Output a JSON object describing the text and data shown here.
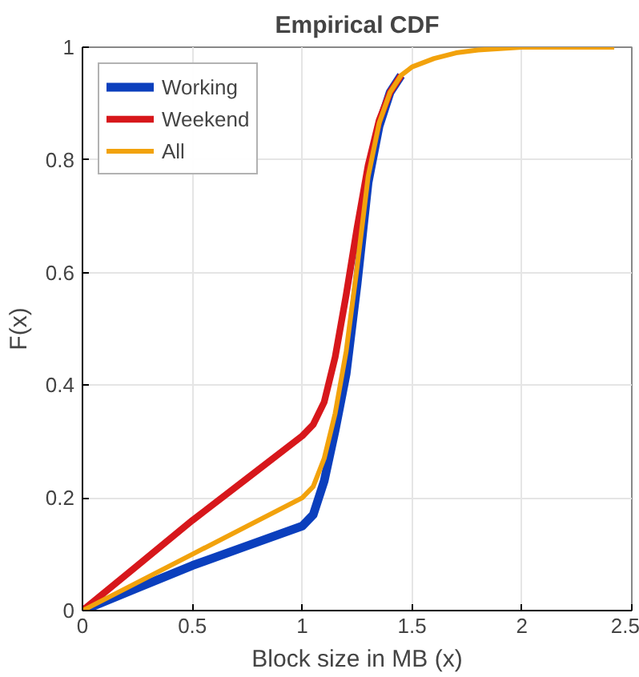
{
  "chart_data": {
    "type": "line",
    "title": "Empirical CDF",
    "xlabel": "Block size in MB (x)",
    "ylabel": "F(x)",
    "xlim": [
      0,
      2.5
    ],
    "ylim": [
      0,
      1
    ],
    "xticks": [
      0,
      0.5,
      1,
      1.5,
      2,
      2.5
    ],
    "yticks": [
      0,
      0.2,
      0.4,
      0.6,
      0.8,
      1
    ],
    "grid": true,
    "legend": "top left",
    "series": [
      {
        "name": "Working",
        "color": "#0b3fbd",
        "x": [
          0,
          0.25,
          0.5,
          0.75,
          1,
          1.05,
          1.1,
          1.15,
          1.2,
          1.25,
          1.3,
          1.35,
          1.4,
          1.45
        ],
        "values": [
          0,
          0.04,
          0.08,
          0.115,
          0.15,
          0.17,
          0.23,
          0.32,
          0.42,
          0.58,
          0.76,
          0.86,
          0.92,
          0.95
        ]
      },
      {
        "name": "Weekend",
        "color": "#d7171b",
        "x": [
          0,
          0.25,
          0.5,
          0.75,
          1,
          1.05,
          1.1,
          1.15,
          1.2,
          1.25,
          1.3,
          1.35,
          1.4,
          1.45
        ],
        "values": [
          0,
          0.08,
          0.16,
          0.235,
          0.31,
          0.33,
          0.37,
          0.45,
          0.56,
          0.68,
          0.79,
          0.87,
          0.92,
          0.95
        ]
      },
      {
        "name": "All",
        "color": "#f2a20c",
        "x": [
          0,
          0.25,
          0.5,
          0.75,
          1,
          1.05,
          1.1,
          1.15,
          1.2,
          1.25,
          1.3,
          1.35,
          1.4,
          1.45,
          1.5,
          1.6,
          1.7,
          1.8,
          2.0,
          2.2,
          2.42
        ],
        "values": [
          0,
          0.05,
          0.1,
          0.15,
          0.2,
          0.22,
          0.27,
          0.35,
          0.46,
          0.61,
          0.77,
          0.865,
          0.92,
          0.95,
          0.965,
          0.98,
          0.99,
          0.995,
          1,
          1,
          1
        ]
      }
    ]
  }
}
